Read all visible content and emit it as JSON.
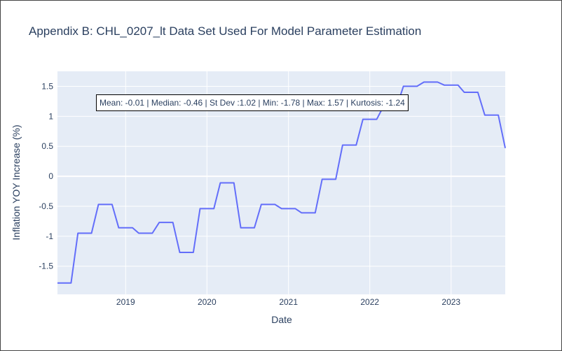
{
  "chart_data": {
    "type": "line",
    "title": "Appendix B: CHL_0207_lt Data Set Used For Model Parameter Estimation",
    "xlabel": "Date",
    "ylabel": "Inflation YOY Increase (%)",
    "annotation": "Mean: -0.01 | Median: -0.46 | St Dev :1.02 | Min: -1.78 | Max: 1.57 | Kurtosis: -1.24",
    "x_ticks": [
      "2019",
      "2020",
      "2021",
      "2022",
      "2023"
    ],
    "y_ticks": [
      "1.5",
      "1",
      "0.5",
      "0",
      "-0.5",
      "-1",
      "-1.5"
    ],
    "xlim": [
      "2018-03-01",
      "2023-09-01"
    ],
    "ylim": [
      -1.97,
      1.75
    ],
    "grid": true,
    "line_color": "#636efa",
    "background_color": "#e5ecf6",
    "series": [
      {
        "x": [
          "2018-03-01",
          "2018-05-01",
          "2018-06-01",
          "2018-08-01",
          "2018-09-01",
          "2018-11-01",
          "2018-12-01",
          "2019-02-01",
          "2019-03-01",
          "2019-05-01",
          "2019-06-01",
          "2019-08-01",
          "2019-09-01",
          "2019-11-01",
          "2019-12-01",
          "2020-02-01",
          "2020-03-01",
          "2020-05-01",
          "2020-06-01",
          "2020-08-01",
          "2020-09-01",
          "2020-11-01",
          "2020-12-01",
          "2021-02-01",
          "2021-03-01",
          "2021-05-01",
          "2021-06-01",
          "2021-08-01",
          "2021-09-01",
          "2021-11-01",
          "2021-12-01",
          "2022-02-01",
          "2022-03-01",
          "2022-05-01",
          "2022-06-01",
          "2022-08-01",
          "2022-09-01",
          "2022-11-01",
          "2022-12-01",
          "2023-02-01",
          "2023-03-01",
          "2023-05-01",
          "2023-06-01",
          "2023-08-01",
          "2023-09-01"
        ],
        "y": [
          -1.78,
          -1.78,
          -0.95,
          -0.95,
          -0.47,
          -0.47,
          -0.86,
          -0.86,
          -0.95,
          -0.95,
          -0.77,
          -0.77,
          -1.27,
          -1.27,
          -0.54,
          -0.54,
          -0.11,
          -0.11,
          -0.86,
          -0.86,
          -0.47,
          -0.47,
          -0.54,
          -0.54,
          -0.61,
          -0.61,
          -0.05,
          -0.05,
          0.52,
          0.52,
          0.95,
          0.95,
          1.15,
          1.15,
          1.5,
          1.5,
          1.57,
          1.57,
          1.52,
          1.52,
          1.4,
          1.4,
          1.02,
          1.02,
          0.47
        ]
      }
    ]
  }
}
